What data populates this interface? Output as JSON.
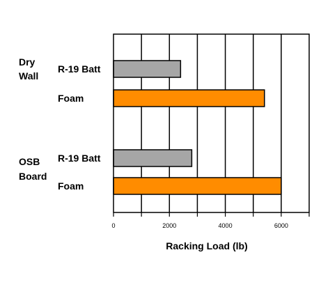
{
  "chart_data": {
    "type": "bar",
    "orientation": "horizontal",
    "xlabel": "Racking Load (lb)",
    "xlim": [
      0,
      7000
    ],
    "ticks": [
      0,
      2000,
      4000,
      6000
    ],
    "tick_labels": [
      "0",
      "2000",
      "4000",
      "6000"
    ],
    "grid": true,
    "groups": [
      {
        "label_lines": [
          "Dry",
          "Wall"
        ],
        "bars": [
          {
            "category": "R-19 Batt",
            "value": 2400,
            "color": "#a6a6a6"
          },
          {
            "category": "Foam",
            "value": 5400,
            "color": "#ff8c00"
          }
        ]
      },
      {
        "label_lines": [
          "OSB",
          "Board"
        ],
        "bars": [
          {
            "category": "R-19 Batt",
            "value": 2800,
            "color": "#a6a6a6"
          },
          {
            "category": "Foam",
            "value": 6000,
            "color": "#ff8c00"
          }
        ]
      }
    ]
  }
}
